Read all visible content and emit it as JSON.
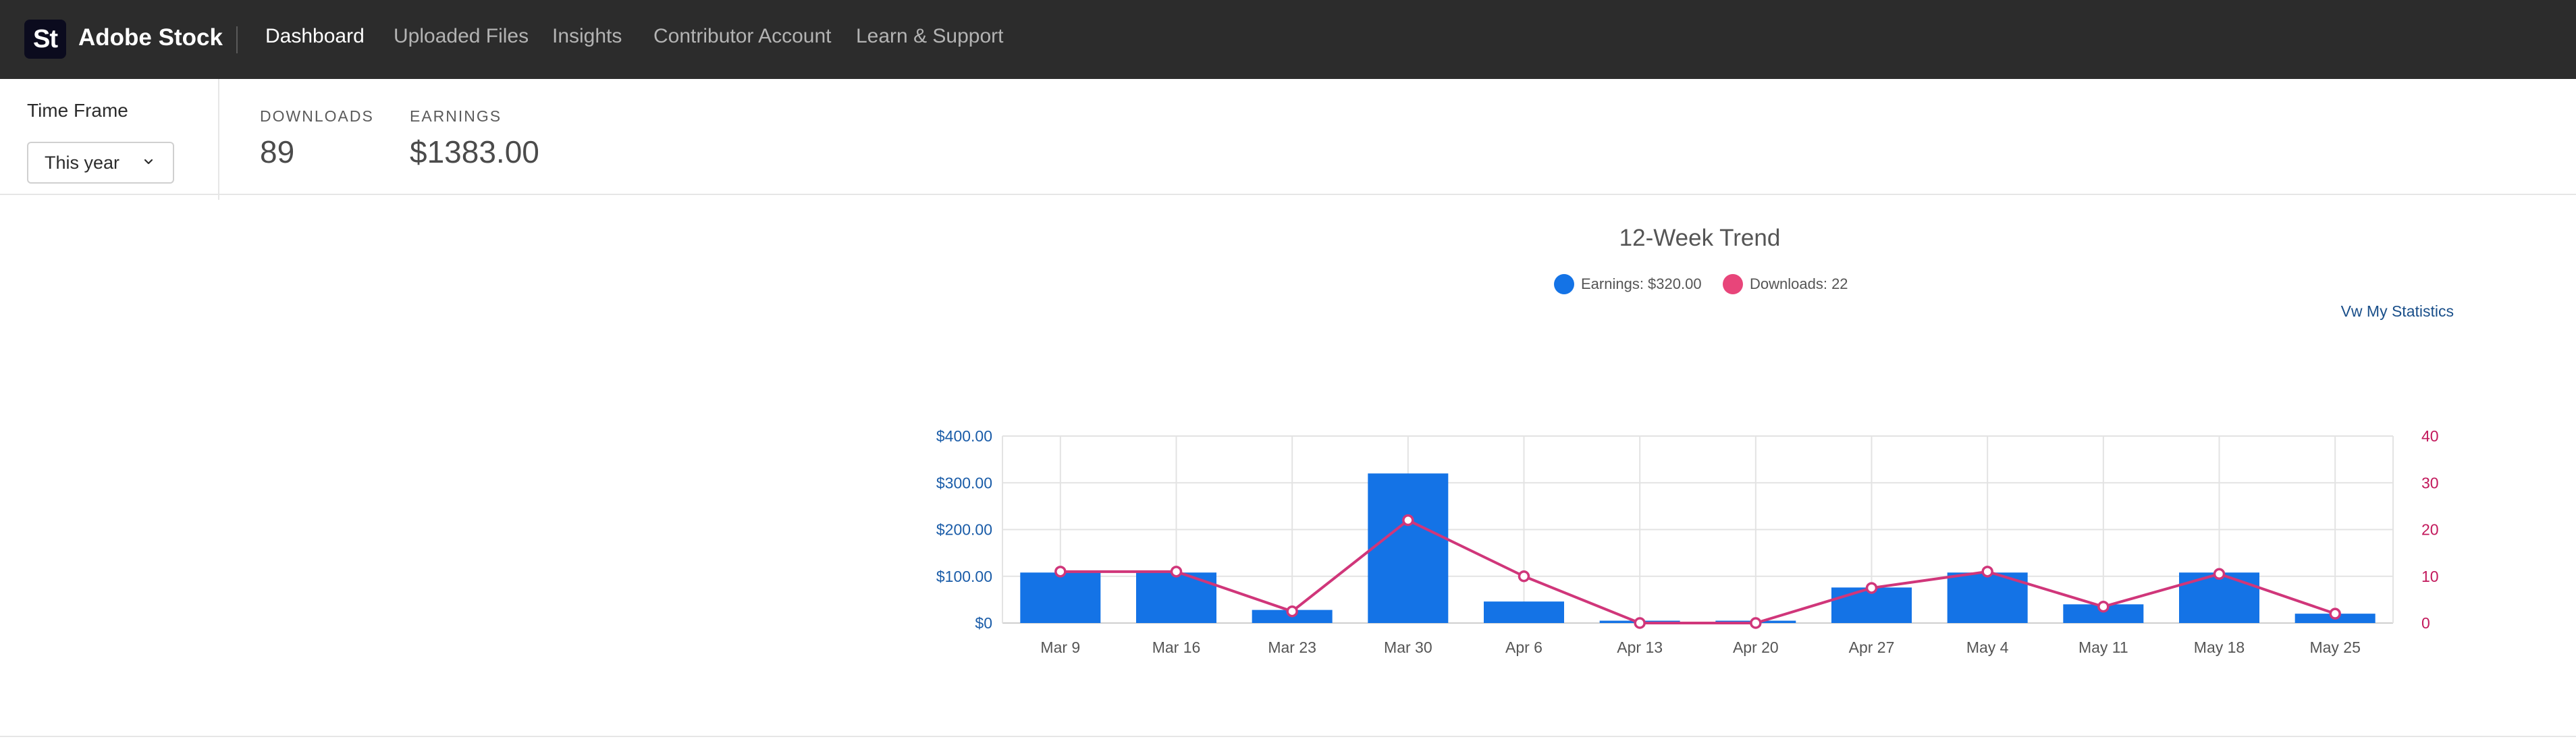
{
  "app": {
    "logo_text": "St",
    "brand": "Adobe Stock"
  },
  "nav": {
    "items": [
      {
        "label": "Dashboard",
        "active": true
      },
      {
        "label": "Uploaded Files",
        "active": false
      },
      {
        "label": "Insights",
        "active": false
      },
      {
        "label": "Contributor Account",
        "active": false
      },
      {
        "label": "Learn & Support",
        "active": false
      }
    ]
  },
  "time_frame": {
    "label": "Time Frame",
    "selected": "This year",
    "icon": "chevron-down-icon"
  },
  "stats": {
    "downloads_label": "DOWNLOADS",
    "downloads_value": "89",
    "earnings_label": "EARNINGS",
    "earnings_value": "$1383.00"
  },
  "chart_link": "Vw My Statistics",
  "colors": {
    "nav_bg": "#2c2c2c",
    "bar": "#1473e6",
    "line": "#d0367a",
    "left_axis": "#1a5ca8",
    "right_axis": "#c2185b"
  },
  "chart_data": {
    "type": "bar",
    "title": "12-Week Trend",
    "categories": [
      "Mar 9",
      "Mar 16",
      "Mar 23",
      "Mar 30",
      "Apr 6",
      "Apr 13",
      "Apr 20",
      "Apr 27",
      "May 4",
      "May 11",
      "May 18",
      "May 25"
    ],
    "legend": [
      {
        "label": "Earnings: $320.00",
        "color": "#1473e6"
      },
      {
        "label": "Downloads: 22",
        "color": "#e8457a"
      }
    ],
    "series": [
      {
        "name": "Earnings",
        "type": "bar",
        "axis": "left",
        "values": [
          108,
          108,
          28,
          320,
          46,
          5,
          5,
          76,
          108,
          40,
          108,
          20
        ]
      },
      {
        "name": "Downloads",
        "type": "line",
        "axis": "right",
        "values": [
          11,
          11,
          2.5,
          22,
          10,
          0,
          0,
          7.5,
          11,
          3.5,
          10.5,
          2
        ]
      }
    ],
    "y_left": {
      "ticks": [
        "$0",
        "$100.00",
        "$200.00",
        "$300.00",
        "$400.00"
      ],
      "ylim": [
        0,
        400
      ]
    },
    "y_right": {
      "ticks": [
        "0",
        "10",
        "20",
        "30",
        "40"
      ],
      "ylim": [
        0,
        40
      ]
    },
    "grid": true,
    "legend_position": "top-center"
  }
}
